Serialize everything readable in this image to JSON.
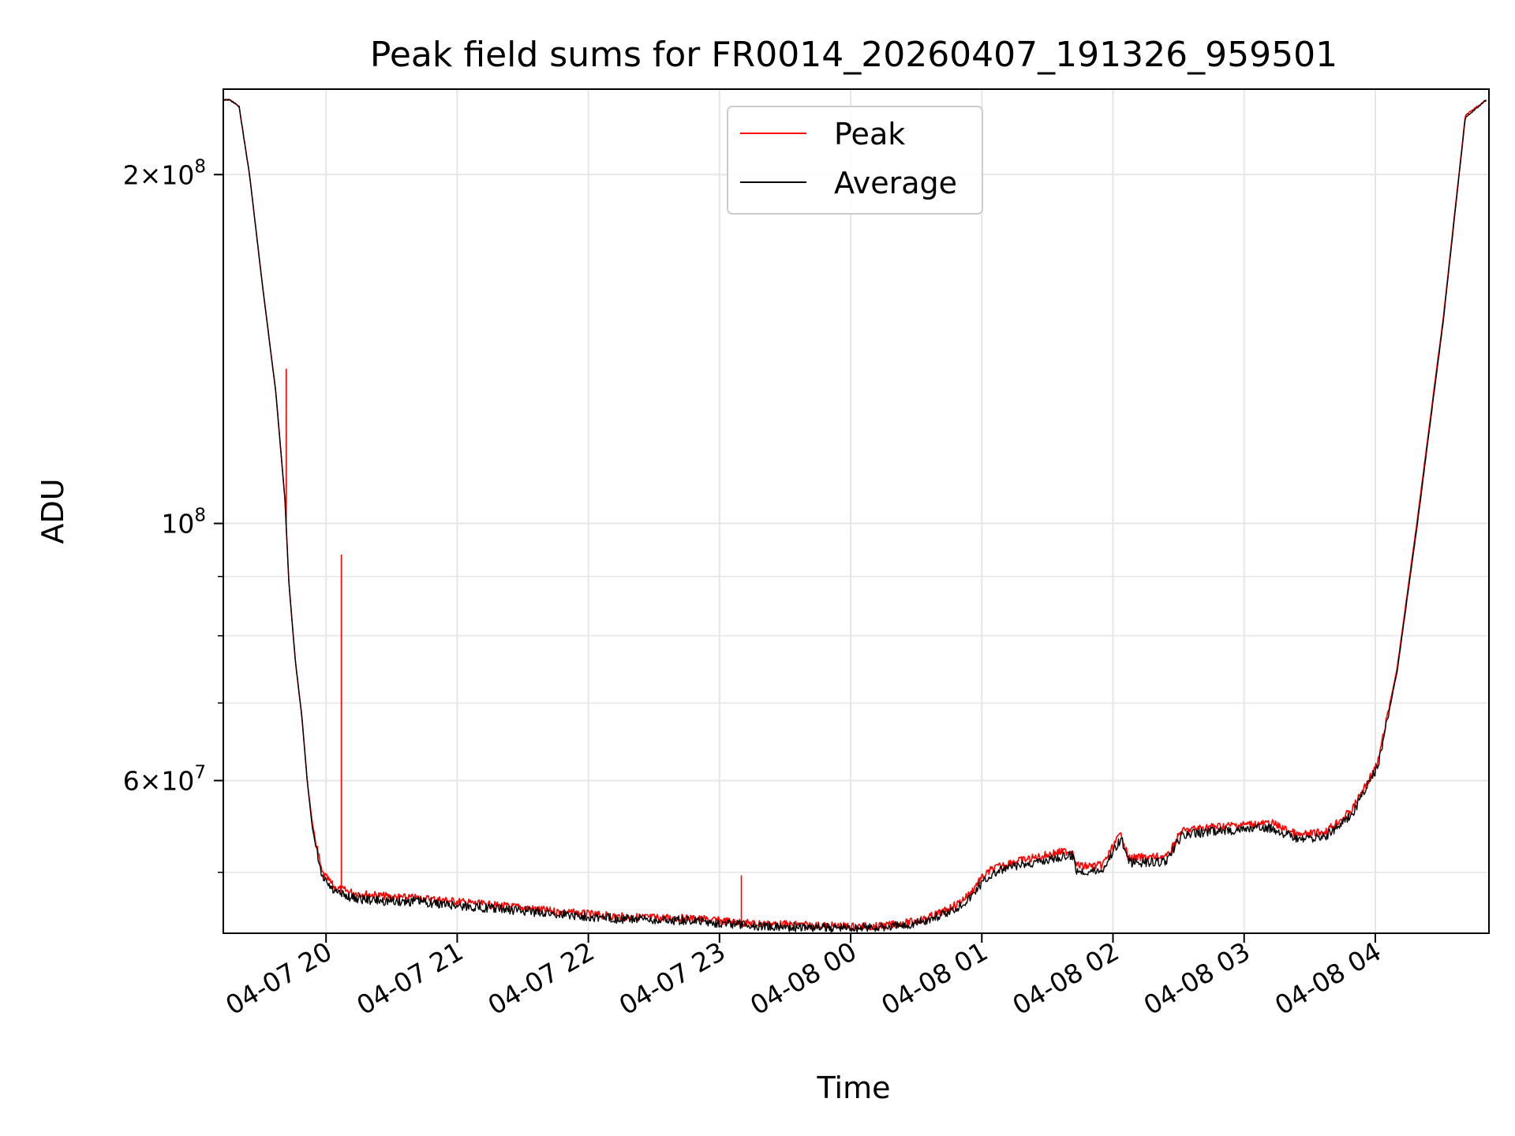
{
  "chart_data": {
    "type": "line",
    "title": "Peak field sums for FR0014_20260407_191326_959501",
    "xlabel": "Time",
    "ylabel": "ADU",
    "yscale": "log",
    "ylim": [
      44300000,
      237000000
    ],
    "xlim": [
      "2026-04-07T19:13",
      "2026-04-08T04:52"
    ],
    "grid": true,
    "legend_position": "upper-center",
    "x_ticks": [
      {
        "label": "04-07 20",
        "time": "2026-04-07T20:00"
      },
      {
        "label": "04-07 21",
        "time": "2026-04-07T21:00"
      },
      {
        "label": "04-07 22",
        "time": "2026-04-07T22:00"
      },
      {
        "label": "04-07 23",
        "time": "2026-04-07T23:00"
      },
      {
        "label": "04-08 00",
        "time": "2026-04-08T00:00"
      },
      {
        "label": "04-08 01",
        "time": "2026-04-08T01:00"
      },
      {
        "label": "04-08 02",
        "time": "2026-04-08T02:00"
      },
      {
        "label": "04-08 03",
        "time": "2026-04-08T03:00"
      },
      {
        "label": "04-08 04",
        "time": "2026-04-08T04:00"
      }
    ],
    "y_major_ticks": [
      {
        "base": "2",
        "exp": "8",
        "value": 200000000
      },
      {
        "base": "",
        "exp": "8",
        "value": 100000000
      },
      {
        "base": "6",
        "exp": "7",
        "value": 60000000
      }
    ],
    "y_minor_ticks": [
      50000000,
      70000000,
      80000000,
      90000000
    ],
    "series": [
      {
        "name": "Peak",
        "color": "#ff0000",
        "x_hours": [
          0,
          0.05,
          0.12,
          0.2,
          0.3,
          0.4,
          0.47,
          0.5,
          0.55,
          0.6,
          0.64,
          0.68,
          0.75,
          0.85,
          1,
          1.15,
          1.3,
          1.5,
          1.7,
          2,
          2.3,
          2.5,
          2.8,
          3,
          3.3,
          3.6,
          3.8,
          4,
          4.2,
          4.5,
          4.8,
          5,
          5.2,
          5.35,
          5.5,
          5.6,
          5.7,
          5.75,
          5.78,
          5.85,
          5.9,
          6,
          6.2,
          6.35,
          6.48,
          6.5,
          6.55,
          6.7,
          6.82,
          6.85,
          6.9,
          7,
          7.2,
          7.3,
          7.4,
          7.5,
          7.7,
          7.8,
          8,
          8.2,
          8.4,
          8.6,
          8.8,
          8.95,
          9.1,
          9.3,
          9.47,
          9.63
        ],
        "values": [
          232000000,
          232000000,
          229000000,
          200000000,
          160000000,
          130000000,
          105000000,
          89000000,
          76000000,
          68000000,
          60000000,
          55000000,
          50000000,
          48500000,
          48000000,
          47800000,
          47600000,
          47500000,
          47300000,
          46900000,
          46600000,
          46300000,
          46000000,
          45800000,
          45700000,
          45600000,
          45400000,
          45200000,
          45100000,
          45000000,
          44900000,
          44900000,
          45200000,
          45600000,
          46300000,
          47000000,
          48000000,
          49000000,
          49400000,
          50200000,
          50500000,
          51000000,
          51500000,
          52000000,
          52200000,
          50800000,
          50600000,
          50700000,
          53500000,
          54000000,
          51400000,
          51500000,
          51600000,
          54200000,
          54500000,
          54700000,
          54900000,
          55000000,
          55100000,
          53800000,
          54200000,
          56500000,
          62000000,
          75000000,
          100000000,
          150000000,
          225000000,
          232000000
        ],
        "spikes": [
          {
            "x_hours": 0.48,
            "value": 136000000
          },
          {
            "x_hours": 0.9,
            "value": 94000000
          },
          {
            "x_hours": 3.95,
            "value": 49700000
          }
        ]
      },
      {
        "name": "Average",
        "color": "#000000",
        "x_hours": [
          0,
          0.05,
          0.12,
          0.2,
          0.3,
          0.4,
          0.47,
          0.5,
          0.55,
          0.6,
          0.64,
          0.68,
          0.75,
          0.85,
          1,
          1.15,
          1.3,
          1.5,
          1.7,
          2,
          2.3,
          2.5,
          2.8,
          3,
          3.3,
          3.6,
          3.8,
          4,
          4.2,
          4.5,
          4.8,
          5,
          5.2,
          5.35,
          5.5,
          5.6,
          5.7,
          5.75,
          5.78,
          5.85,
          5.9,
          6,
          6.2,
          6.35,
          6.48,
          6.5,
          6.55,
          6.7,
          6.82,
          6.85,
          6.9,
          7,
          7.2,
          7.3,
          7.4,
          7.5,
          7.7,
          7.8,
          8,
          8.2,
          8.4,
          8.6,
          8.8,
          8.95,
          9.1,
          9.3,
          9.47,
          9.63
        ],
        "values": [
          232000000,
          232000000,
          229000000,
          200000000,
          160000000,
          130000000,
          105000000,
          89000000,
          76000000,
          68000000,
          60000000,
          54500000,
          49500000,
          48000000,
          47500000,
          47300000,
          47200000,
          47200000,
          46900000,
          46600000,
          46300000,
          46100000,
          45800000,
          45600000,
          45500000,
          45400000,
          45200000,
          45000000,
          44900000,
          44800000,
          44800000,
          44800000,
          45000000,
          45400000,
          46000000,
          46700000,
          47600000,
          48500000,
          48900000,
          49700000,
          50000000,
          50500000,
          51000000,
          51500000,
          51700000,
          50300000,
          50100000,
          50200000,
          53000000,
          53400000,
          51000000,
          51000000,
          51100000,
          53700000,
          54000000,
          54200000,
          54400000,
          54500000,
          54600000,
          53300000,
          53700000,
          56000000,
          61500000,
          74500000,
          99000000,
          149000000,
          224000000,
          232000000
        ]
      }
    ]
  }
}
